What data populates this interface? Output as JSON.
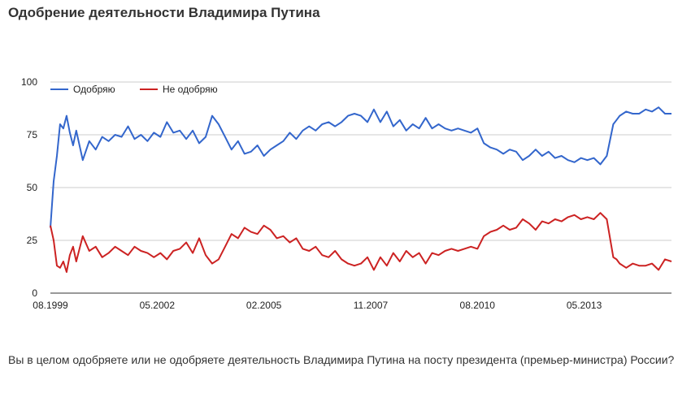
{
  "page": {
    "title": "Одобрение деятельности Владимира Путина",
    "question": "Вы в целом одобряете или не одобряете деятельность Владимира Путина на посту президента (премьер-министра) России?"
  },
  "colors": {
    "approve": "#3366cc",
    "disapprove": "#cc2222",
    "grid": "#cccccc"
  },
  "chart_data": {
    "type": "line",
    "title": "",
    "xlabel": "",
    "ylabel": "",
    "ylim": [
      0,
      100
    ],
    "yticks": [
      0,
      25,
      50,
      75,
      100
    ],
    "xlim": [
      "1999-08",
      "2015-08"
    ],
    "xticks": [
      "08.1999",
      "05.2002",
      "02.2005",
      "11.2007",
      "08.2010",
      "05.2013"
    ],
    "grid": true,
    "legend_position": "top-left",
    "x": [
      "1999-08",
      "1999-09",
      "1999-10",
      "1999-11",
      "1999-12",
      "2000-01",
      "2000-02",
      "2000-03",
      "2000-04",
      "2000-06",
      "2000-08",
      "2000-10",
      "2000-12",
      "2001-02",
      "2001-04",
      "2001-06",
      "2001-08",
      "2001-10",
      "2001-12",
      "2002-02",
      "2002-04",
      "2002-06",
      "2002-08",
      "2002-10",
      "2002-12",
      "2003-02",
      "2003-04",
      "2003-06",
      "2003-08",
      "2003-10",
      "2003-12",
      "2004-02",
      "2004-04",
      "2004-06",
      "2004-08",
      "2004-10",
      "2004-12",
      "2005-02",
      "2005-04",
      "2005-06",
      "2005-08",
      "2005-10",
      "2005-12",
      "2006-02",
      "2006-04",
      "2006-06",
      "2006-08",
      "2006-10",
      "2006-12",
      "2007-02",
      "2007-04",
      "2007-06",
      "2007-08",
      "2007-10",
      "2007-12",
      "2008-02",
      "2008-04",
      "2008-06",
      "2008-08",
      "2008-10",
      "2008-12",
      "2009-02",
      "2009-04",
      "2009-06",
      "2009-08",
      "2009-10",
      "2009-12",
      "2010-02",
      "2010-04",
      "2010-06",
      "2010-08",
      "2010-10",
      "2010-12",
      "2011-02",
      "2011-04",
      "2011-06",
      "2011-08",
      "2011-10",
      "2011-12",
      "2012-02",
      "2012-04",
      "2012-06",
      "2012-08",
      "2012-10",
      "2012-12",
      "2013-02",
      "2013-04",
      "2013-06",
      "2013-08",
      "2013-10",
      "2013-12",
      "2014-02",
      "2014-03",
      "2014-04",
      "2014-06",
      "2014-08",
      "2014-10",
      "2014-12",
      "2015-02",
      "2015-04",
      "2015-06",
      "2015-08"
    ],
    "series": [
      {
        "name": "Одобряю",
        "values": [
          31,
          53,
          65,
          80,
          78,
          84,
          76,
          70,
          77,
          63,
          72,
          68,
          74,
          72,
          75,
          74,
          79,
          73,
          75,
          72,
          76,
          74,
          81,
          76,
          77,
          73,
          77,
          71,
          74,
          84,
          80,
          74,
          68,
          72,
          66,
          67,
          70,
          65,
          68,
          70,
          72,
          76,
          73,
          77,
          79,
          77,
          80,
          81,
          79,
          81,
          84,
          85,
          84,
          81,
          87,
          81,
          86,
          79,
          82,
          77,
          80,
          78,
          83,
          78,
          80,
          78,
          77,
          78,
          77,
          76,
          78,
          71,
          69,
          68,
          66,
          68,
          67,
          63,
          65,
          68,
          65,
          67,
          64,
          65,
          63,
          62,
          64,
          63,
          64,
          61,
          65,
          80,
          82,
          84,
          86,
          85,
          85,
          87,
          86,
          88,
          85,
          85
        ]
      },
      {
        "name": "Не одобряю",
        "values": [
          32,
          25,
          13,
          12,
          15,
          10,
          18,
          22,
          15,
          27,
          20,
          22,
          17,
          19,
          22,
          20,
          18,
          22,
          20,
          19,
          17,
          19,
          16,
          20,
          21,
          24,
          19,
          26,
          18,
          14,
          16,
          22,
          28,
          26,
          31,
          29,
          28,
          32,
          30,
          26,
          27,
          24,
          26,
          21,
          20,
          22,
          18,
          17,
          20,
          16,
          14,
          13,
          14,
          17,
          11,
          17,
          13,
          19,
          15,
          20,
          17,
          19,
          14,
          19,
          18,
          20,
          21,
          20,
          21,
          22,
          21,
          27,
          29,
          30,
          32,
          30,
          31,
          35,
          33,
          30,
          34,
          33,
          35,
          34,
          36,
          37,
          35,
          36,
          35,
          38,
          35,
          17,
          16,
          14,
          12,
          14,
          13,
          13,
          14,
          11,
          16,
          15
        ]
      }
    ]
  }
}
